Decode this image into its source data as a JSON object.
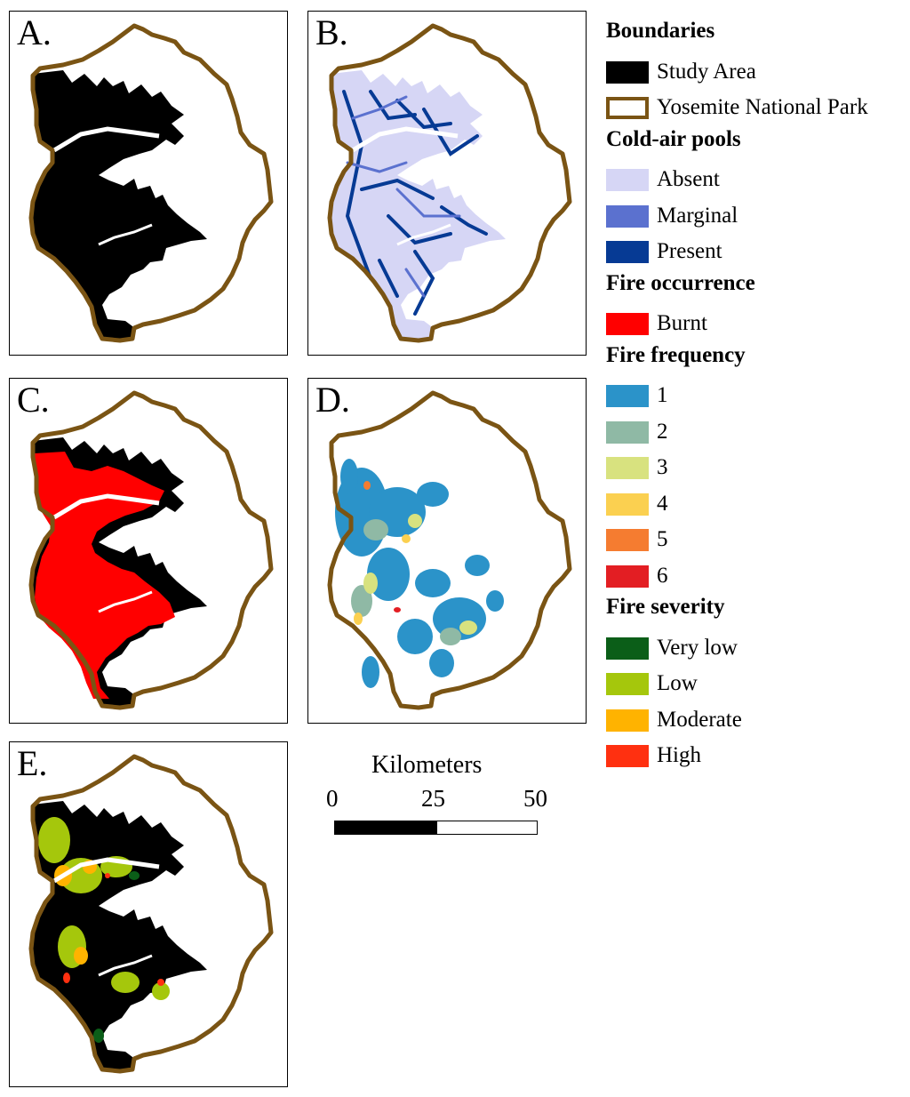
{
  "panels": [
    {
      "label": "A."
    },
    {
      "label": "B."
    },
    {
      "label": "C."
    },
    {
      "label": "D."
    },
    {
      "label": "E."
    }
  ],
  "legend": {
    "groups": [
      {
        "heading": "Boundaries",
        "items": [
          {
            "label": "Study Area",
            "color": "#000000"
          },
          {
            "label": "Yosemite National Park",
            "color": "#7a5414",
            "outline": true
          }
        ]
      },
      {
        "heading": "Cold-air pools",
        "items": [
          {
            "label": "Absent",
            "color": "#d6d6f5"
          },
          {
            "label": "Marginal",
            "color": "#5b71cf"
          },
          {
            "label": "Present",
            "color": "#063a94"
          }
        ]
      },
      {
        "heading": "Fire occurrence",
        "items": [
          {
            "label": "Burnt",
            "color": "#ff0000"
          }
        ]
      },
      {
        "heading": "Fire frequency",
        "items": [
          {
            "label": "1",
            "color": "#2b93c9"
          },
          {
            "label": "2",
            "color": "#8fb9a5"
          },
          {
            "label": "3",
            "color": "#d8e27f"
          },
          {
            "label": "4",
            "color": "#fbd050"
          },
          {
            "label": "5",
            "color": "#f57c30"
          },
          {
            "label": "6",
            "color": "#e31e23"
          }
        ]
      },
      {
        "heading": "Fire severity",
        "items": [
          {
            "label": "Very low",
            "color": "#0b5e18"
          },
          {
            "label": "Low",
            "color": "#a5c70c"
          },
          {
            "label": "Moderate",
            "color": "#ffb300"
          },
          {
            "label": "High",
            "color": "#ff3010"
          }
        ]
      }
    ]
  },
  "scalebar": {
    "title": "Kilometers",
    "ticks": [
      "0",
      "25",
      "50"
    ]
  },
  "colors": {
    "park_boundary": "#7a5414",
    "study_area": "#000000"
  }
}
